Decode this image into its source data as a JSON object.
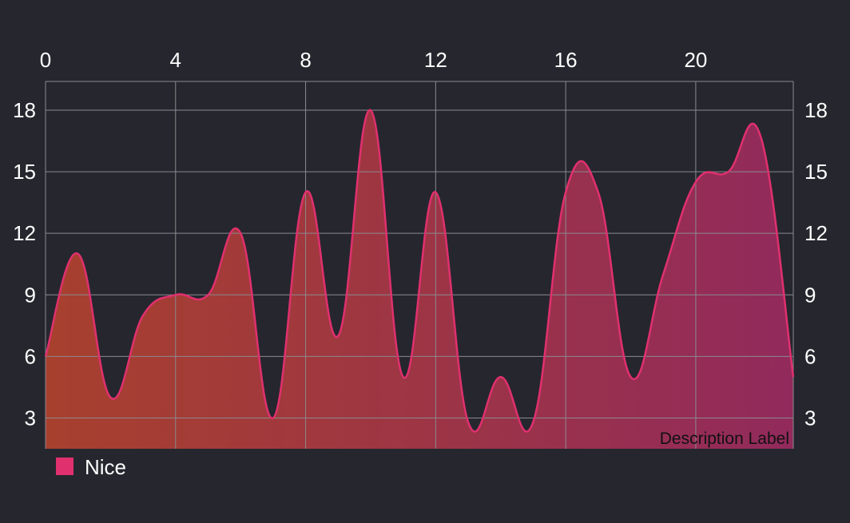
{
  "chart_data": {
    "type": "area",
    "x": [
      0,
      1,
      2,
      3,
      4,
      5,
      6,
      7,
      8,
      9,
      10,
      11,
      12,
      13,
      14,
      15,
      16,
      17,
      18,
      19,
      20,
      21,
      22,
      23
    ],
    "series": [
      {
        "name": "Nice",
        "values": [
          6,
          11,
          4,
          8,
          9,
          9,
          12,
          3,
          14,
          7,
          18,
          5,
          14,
          2.8,
          5,
          2.8,
          14,
          14,
          5,
          10,
          14.5,
          15,
          16.7,
          5
        ]
      }
    ],
    "x_ticks": [
      "0",
      "4",
      "8",
      "12",
      "16",
      "20"
    ],
    "y_ticks": [
      "3",
      "6",
      "9",
      "12",
      "15",
      "18"
    ],
    "xlim": [
      0,
      23
    ],
    "ylim": [
      1.5,
      19.4
    ],
    "x_axis_position": "top",
    "y_axis_left": true,
    "y_axis_right": true,
    "grid": true,
    "legend": "bottom-left",
    "description": "Description Label",
    "colors": {
      "background": "#26262e",
      "line": "#e0306e",
      "fill_start": "#a8402e",
      "fill_end": "#922a5c",
      "legend_swatch": "#e0306e",
      "grid": "#8a8a8e",
      "tick_text": "#ffffff",
      "description_text": "#111111"
    }
  }
}
